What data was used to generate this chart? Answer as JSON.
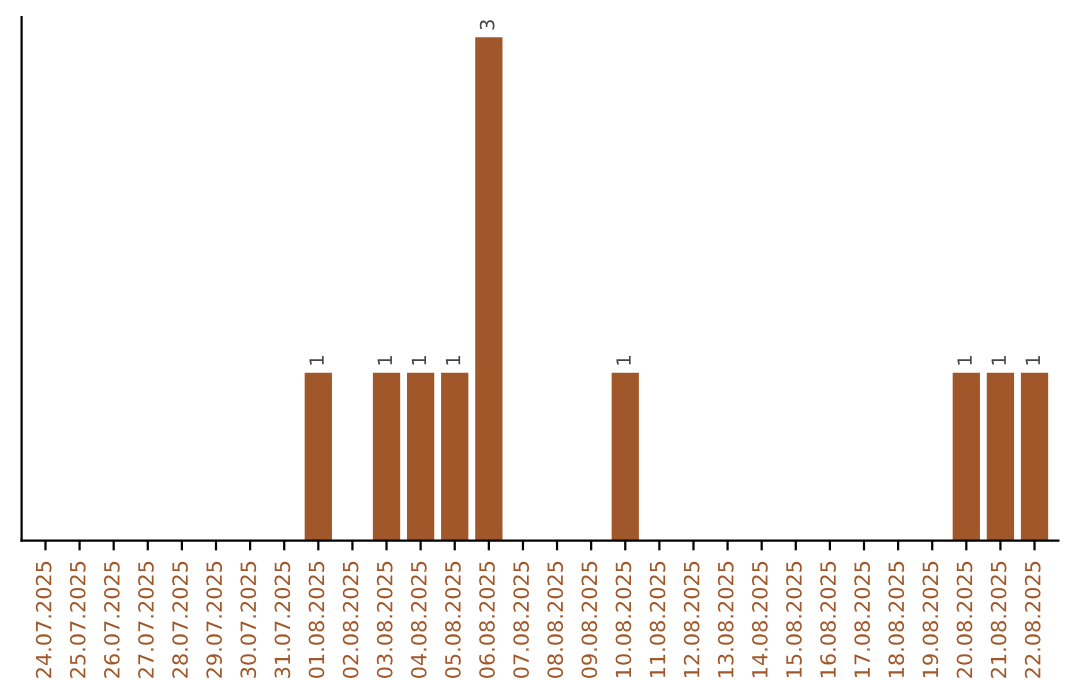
{
  "chart_data": {
    "type": "bar",
    "categories": [
      "24.07.2025",
      "25.07.2025",
      "26.07.2025",
      "27.07.2025",
      "28.07.2025",
      "29.07.2025",
      "30.07.2025",
      "31.07.2025",
      "01.08.2025",
      "02.08.2025",
      "03.08.2025",
      "04.08.2025",
      "05.08.2025",
      "06.08.2025",
      "07.08.2025",
      "08.08.2025",
      "09.08.2025",
      "10.08.2025",
      "11.08.2025",
      "12.08.2025",
      "13.08.2025",
      "14.08.2025",
      "15.08.2025",
      "16.08.2025",
      "17.08.2025",
      "18.08.2025",
      "19.08.2025",
      "20.08.2025",
      "21.08.2025",
      "22.08.2025"
    ],
    "values": [
      0,
      0,
      0,
      0,
      0,
      0,
      0,
      0,
      1,
      0,
      1,
      1,
      1,
      3,
      0,
      0,
      0,
      1,
      0,
      0,
      0,
      0,
      0,
      0,
      0,
      0,
      0,
      1,
      1,
      1
    ],
    "value_labels": [
      null,
      null,
      null,
      null,
      null,
      null,
      null,
      null,
      "1",
      null,
      "1",
      "1",
      "1",
      "3",
      null,
      null,
      null,
      "1",
      null,
      null,
      null,
      null,
      null,
      null,
      null,
      null,
      null,
      "1",
      "1",
      "1"
    ],
    "color": "#a0582a",
    "tick_labels": "x",
    "grid": false,
    "legend": false
  }
}
